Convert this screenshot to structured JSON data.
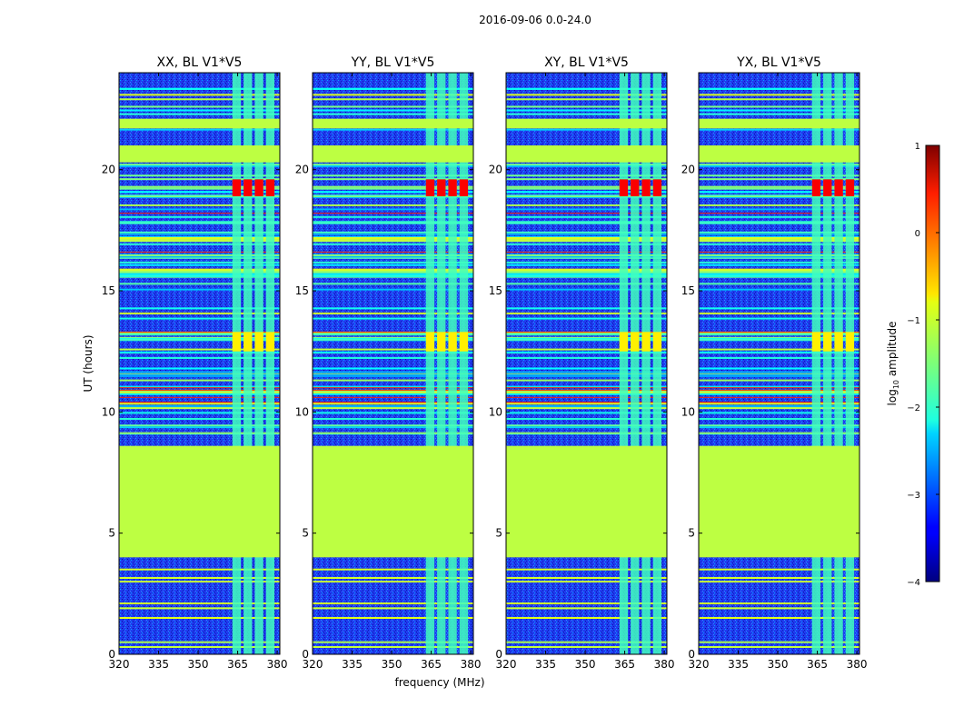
{
  "chart_data": {
    "type": "heatmap",
    "suptitle": "2016-09-06 0.0-24.0",
    "xlabel": "frequency (MHz)",
    "ylabel": "UT (hours)",
    "xlim": [
      320,
      381
    ],
    "ylim": [
      0,
      24
    ],
    "xticks": [
      "320",
      "335",
      "350",
      "365",
      "380"
    ],
    "yticks": [
      "0",
      "5",
      "10",
      "15",
      "20"
    ],
    "colorbar": {
      "label": "log₁₀ amplitude",
      "label_base": "log",
      "label_sub": "10",
      "label_rest": " amplitude",
      "range": [
        -4,
        1
      ],
      "ticks": [
        "1",
        "0",
        "−1",
        "−2",
        "−3",
        "−4"
      ],
      "colormap": "jet"
    },
    "panels": [
      {
        "title": "XX, BL V1*V5"
      },
      {
        "title": "YY, BL V1*V5"
      },
      {
        "title": "XY, BL V1*V5"
      },
      {
        "title": "YX, BL V1*V5"
      }
    ],
    "features": {
      "background_level": -3.0,
      "flagged_level": -1.2,
      "flagged_ut_ranges": [
        [
          4.0,
          8.6
        ],
        [
          20.3,
          21.0
        ],
        [
          21.7,
          22.1
        ]
      ],
      "rfi_band_mhz": [
        363,
        380
      ],
      "rfi_band_level": -1.8,
      "rfi_peak_ut_range": [
        18.9,
        19.6
      ],
      "rfi_peak_level": 0.4
    }
  }
}
